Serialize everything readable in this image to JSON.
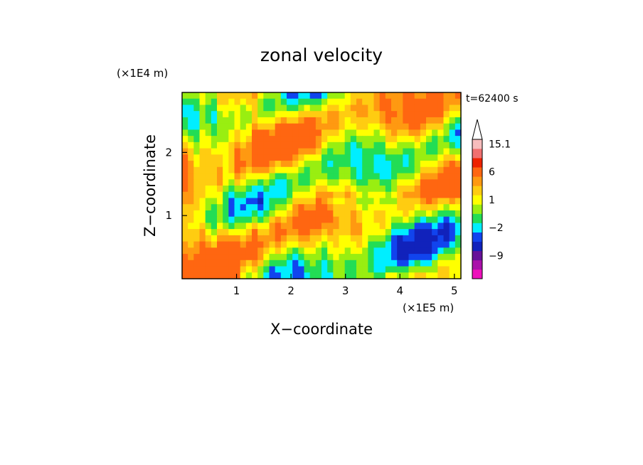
{
  "chart_data": {
    "type": "heatmap",
    "title": "zonal velocity",
    "xlabel": "X−coordinate",
    "ylabel": "Z−coordinate",
    "x_unit": "(×1E5 m)",
    "y_unit": "(×1E4 m)",
    "time_label": "t=62400 s",
    "xlim": [
      0,
      5.12
    ],
    "ylim": [
      0,
      2.95
    ],
    "x_ticks": [
      {
        "value": 1,
        "label": "1"
      },
      {
        "value": 2,
        "label": "2"
      },
      {
        "value": 3,
        "label": "3"
      },
      {
        "value": 4,
        "label": "4"
      },
      {
        "value": 5,
        "label": "5"
      }
    ],
    "y_ticks": [
      {
        "value": 1,
        "label": "1"
      },
      {
        "value": 2,
        "label": "2"
      }
    ],
    "colorbar": {
      "levels": [
        {
          "color": "#ee11bb"
        },
        {
          "color": "#aa11aa"
        },
        {
          "color": "#661199"
        },
        {
          "color": "#1122bb"
        },
        {
          "color": "#1144ee"
        },
        {
          "color": "#00eeff"
        },
        {
          "color": "#22dd55"
        },
        {
          "color": "#99ee11"
        },
        {
          "color": "#ffff00"
        },
        {
          "color": "#ffcc11"
        },
        {
          "color": "#ff9911"
        },
        {
          "color": "#ff6611"
        },
        {
          "color": "#ee2200"
        },
        {
          "color": "#f07070"
        },
        {
          "color": "#f7bdbd"
        }
      ],
      "labels": [
        {
          "text": "−9",
          "level": 2
        },
        {
          "text": "−2",
          "level": 5
        },
        {
          "text": "1",
          "level": 8
        },
        {
          "text": "6",
          "level": 11
        },
        {
          "text": "15.1",
          "level": 14
        }
      ]
    },
    "field_note": "Contoured field approximated from the image; values are color-level indices (0 = most negative, 14 = most positive).",
    "field_cols": 48,
    "field_rows": 30
  }
}
